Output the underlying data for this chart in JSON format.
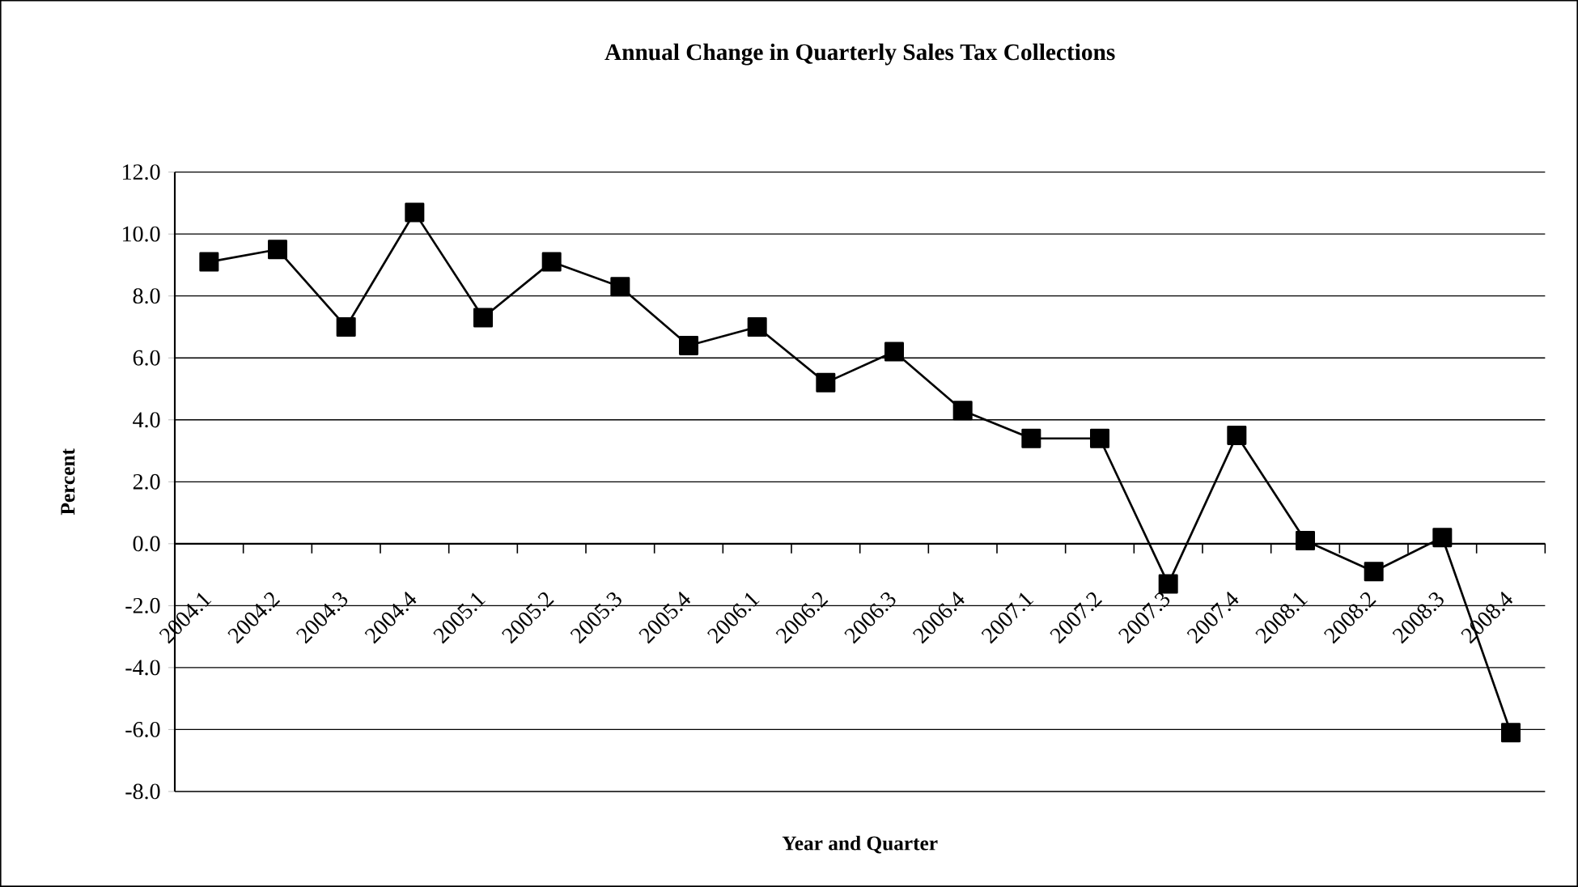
{
  "chart_data": {
    "type": "line",
    "title": "Annual Change in Quarterly Sales Tax Collections",
    "xlabel": "Year and Quarter",
    "ylabel": "Percent",
    "categories": [
      "2004.1",
      "2004.2",
      "2004.3",
      "2004.4",
      "2005.1",
      "2005.2",
      "2005.3",
      "2005.4",
      "2006.1",
      "2006.2",
      "2006.3",
      "2006.4",
      "2007.1",
      "2007.2",
      "2007.3",
      "2007.4",
      "2008.1",
      "2008.2",
      "2008.3",
      "2008.4"
    ],
    "values": [
      9.1,
      9.5,
      7.0,
      10.7,
      7.3,
      9.1,
      8.3,
      6.4,
      7.0,
      5.2,
      6.2,
      4.3,
      3.4,
      3.4,
      -1.3,
      3.5,
      0.1,
      -0.9,
      0.2,
      -6.1
    ],
    "color": "#000000",
    "marker": "square",
    "line_style": "solid",
    "grid": "y",
    "ylim": [
      -8,
      12
    ],
    "yticks": [
      {
        "value": -8,
        "label": "-8.0"
      },
      {
        "value": -6,
        "label": "-6.0"
      },
      {
        "value": -4,
        "label": "-4.0"
      },
      {
        "value": -2,
        "label": "-2.0"
      },
      {
        "value": 0,
        "label": "0.0"
      },
      {
        "value": 2,
        "label": "2.0"
      },
      {
        "value": 4,
        "label": "4.0"
      },
      {
        "value": 6,
        "label": "6.0"
      },
      {
        "value": 8,
        "label": "8.0"
      },
      {
        "value": 10,
        "label": "10.0"
      },
      {
        "value": 12,
        "label": "12.0"
      }
    ]
  }
}
